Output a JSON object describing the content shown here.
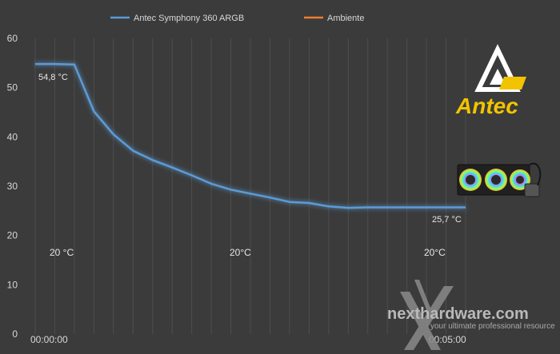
{
  "chart_data": {
    "type": "line",
    "title": "",
    "xlabel": "",
    "ylabel": "",
    "ylim": [
      0,
      60
    ],
    "yticks": [
      "0",
      "10",
      "20",
      "30",
      "40",
      "50",
      "60"
    ],
    "xticks": [
      "00:00:00",
      "00:05:00"
    ],
    "grid": "vertical",
    "legend_position": "top",
    "series": [
      {
        "name": "Antec Symphony 360 ARGB",
        "color": "#5b9bd5",
        "x": [
          0,
          1,
          2,
          3,
          4,
          5,
          6,
          7,
          8,
          9,
          10,
          11,
          12,
          13,
          14,
          15,
          16,
          17,
          18,
          19,
          20,
          21,
          22
        ],
        "values": [
          54.8,
          54.8,
          54.7,
          45.2,
          40.5,
          37.2,
          35.3,
          33.8,
          32.2,
          30.5,
          29.3,
          28.5,
          27.7,
          26.8,
          26.6,
          25.9,
          25.6,
          25.7,
          25.7,
          25.7,
          25.7,
          25.7,
          25.7
        ]
      },
      {
        "name": "Ambiente",
        "color": "#ed7d31",
        "x": [
          0,
          22
        ],
        "values": [
          20,
          20
        ]
      }
    ],
    "annotations": {
      "start_value": "54,8 °C",
      "end_value": "25,7 °C",
      "ambient_left": "20 °C",
      "ambient_mid": "20°C",
      "ambient_right": "20°C"
    }
  },
  "brand": {
    "logo_text": "Antec",
    "watermark_main": "nexthardware.com",
    "watermark_sub": "your ultimate professional resource"
  }
}
